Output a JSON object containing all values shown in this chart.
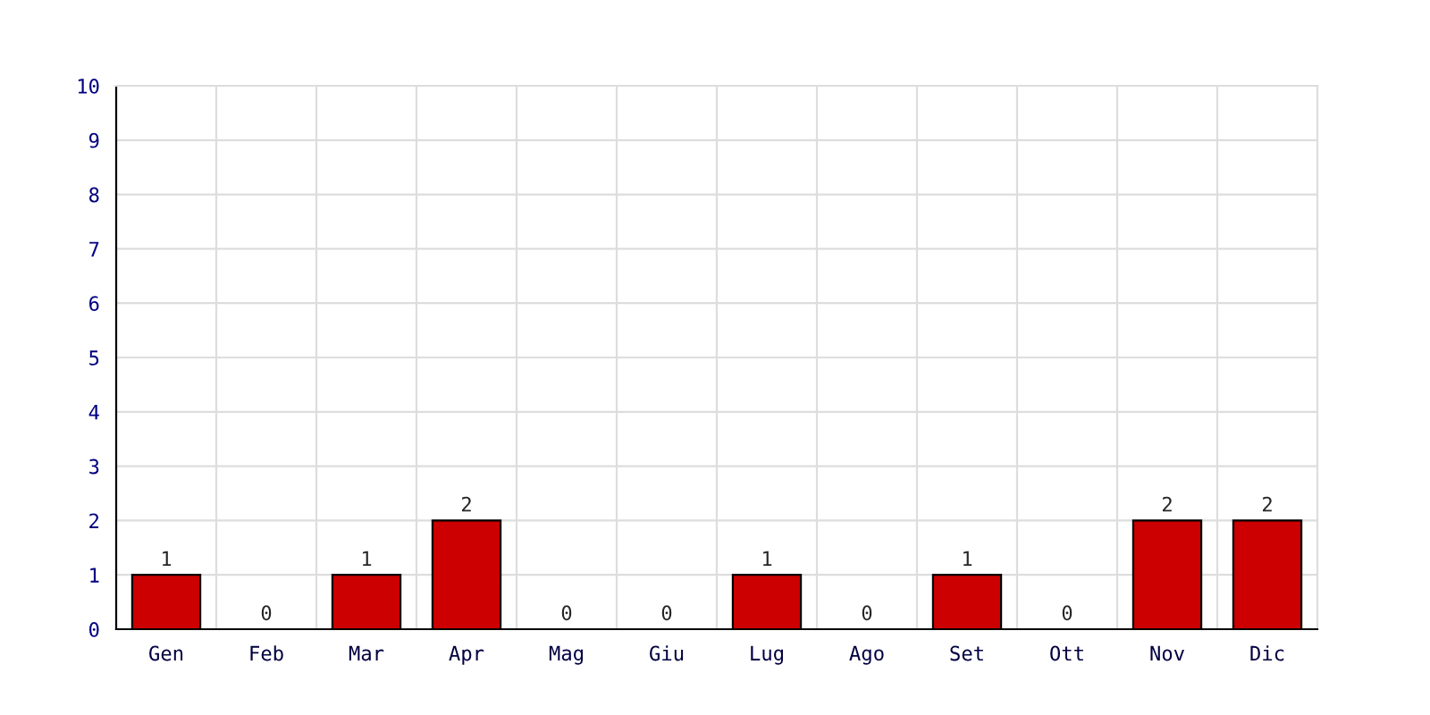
{
  "chart_data": {
    "type": "bar",
    "categories": [
      "Gen",
      "Feb",
      "Mar",
      "Apr",
      "Mag",
      "Giu",
      "Lug",
      "Ago",
      "Set",
      "Ott",
      "Nov",
      "Dic"
    ],
    "values": [
      1,
      0,
      1,
      2,
      0,
      0,
      1,
      0,
      1,
      0,
      2,
      2
    ],
    "color": "#cc0000",
    "ylim": [
      0,
      10
    ],
    "yticks": [
      0,
      1,
      2,
      3,
      4,
      5,
      6,
      7,
      8,
      9,
      10
    ],
    "grid": true,
    "data_labels": true
  }
}
